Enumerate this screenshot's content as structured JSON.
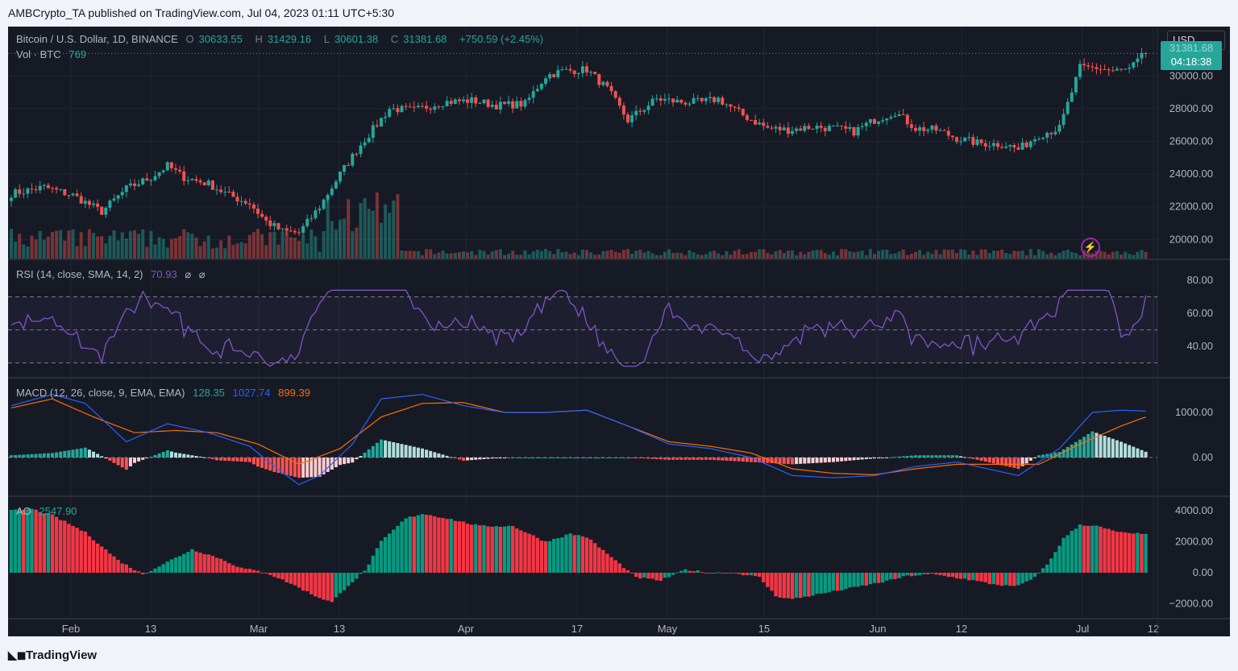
{
  "publisher_line": "AMBCrypto_TA published on TradingView.com, Jul 04, 2023 01:11 UTC+5:30",
  "branding": "TradingView",
  "price_legend": {
    "symbol": "Bitcoin / U.S. Dollar, 1D, BINANCE",
    "open_label": "O",
    "open": "30633.55",
    "high_label": "H",
    "high": "31429.16",
    "low_label": "L",
    "low": "30601.38",
    "close_label": "C",
    "close": "31381.68",
    "change": "+750.59 (+2.45%)"
  },
  "volume_legend": {
    "label": "Vol · BTC",
    "value": "769"
  },
  "rsi_legend": {
    "label": "RSI (14, close, SMA, 14, 2)",
    "value": "70.93",
    "extra1": "⌀",
    "extra2": "⌀"
  },
  "macd_legend": {
    "label": "MACD (12, 26, close, 9, EMA, EMA)",
    "hist": "128.35",
    "macd": "1027.74",
    "signal": "899.39"
  },
  "ao_legend": {
    "label": "AO",
    "value": "2547.90"
  },
  "currency_button": "USD",
  "last_price_tag": {
    "price": "31381.68",
    "countdown": "04:18:38"
  },
  "colors": {
    "background": "#161a25",
    "grid": "#232632",
    "up": "#26a69a",
    "down": "#ef5350",
    "rsi": "#7e57c2",
    "macd": "#2962ff",
    "signal": "#ff6d00",
    "text": "#b2b5be"
  },
  "chart_data": {
    "type": "candlestick",
    "x_ticks": [
      "Feb",
      "13",
      "Mar",
      "13",
      "Apr",
      "17",
      "May",
      "15",
      "Jun",
      "12",
      "Jul",
      "12"
    ],
    "panels": [
      {
        "name": "price",
        "y_ticks": [
          "30000.00",
          "28000.00",
          "26000.00",
          "24000.00",
          "22000.00",
          "20000.00"
        ],
        "close_anchors": [
          [
            0,
            22800
          ],
          [
            8,
            23200
          ],
          [
            15,
            22700
          ],
          [
            22,
            21700
          ],
          [
            28,
            23100
          ],
          [
            34,
            23800
          ],
          [
            38,
            24500
          ],
          [
            42,
            23800
          ],
          [
            48,
            23400
          ],
          [
            53,
            22700
          ],
          [
            58,
            22200
          ],
          [
            62,
            21100
          ],
          [
            66,
            20500
          ],
          [
            70,
            20400
          ],
          [
            75,
            22000
          ],
          [
            80,
            24000
          ],
          [
            85,
            25800
          ],
          [
            92,
            28000
          ],
          [
            98,
            27900
          ],
          [
            105,
            28400
          ],
          [
            112,
            28500
          ],
          [
            118,
            28200
          ],
          [
            125,
            28300
          ],
          [
            130,
            30000
          ],
          [
            134,
            30300
          ],
          [
            140,
            30400
          ],
          [
            145,
            29200
          ],
          [
            150,
            27300
          ],
          [
            157,
            28600
          ],
          [
            163,
            28400
          ],
          [
            168,
            28400
          ],
          [
            172,
            28600
          ],
          [
            178,
            27600
          ],
          [
            184,
            26800
          ],
          [
            189,
            26700
          ],
          [
            195,
            26900
          ],
          [
            200,
            26800
          ],
          [
            205,
            26600
          ],
          [
            210,
            27300
          ],
          [
            215,
            27800
          ],
          [
            220,
            26800
          ],
          [
            225,
            26700
          ],
          [
            230,
            26200
          ],
          [
            235,
            25900
          ],
          [
            242,
            25800
          ],
          [
            245,
            25500
          ],
          [
            250,
            26400
          ],
          [
            255,
            26800
          ],
          [
            260,
            30500
          ],
          [
            264,
            30500
          ],
          [
            268,
            30300
          ],
          [
            272,
            30400
          ],
          [
            276,
            31400
          ]
        ]
      },
      {
        "name": "rsi",
        "y_ticks": [
          "80.00",
          "60.00",
          "40.00"
        ],
        "bands": [
          30,
          50,
          70
        ],
        "last": 70.93
      },
      {
        "name": "macd",
        "y_ticks": [
          "1000.00",
          "0.00"
        ],
        "macd_anchors": [
          [
            0,
            1150
          ],
          [
            10,
            1400
          ],
          [
            18,
            1200
          ],
          [
            28,
            350
          ],
          [
            38,
            750
          ],
          [
            48,
            550
          ],
          [
            58,
            250
          ],
          [
            64,
            -200
          ],
          [
            70,
            -600
          ],
          [
            75,
            -400
          ],
          [
            83,
            300
          ],
          [
            90,
            1300
          ],
          [
            100,
            1400
          ],
          [
            110,
            1150
          ],
          [
            120,
            1000
          ],
          [
            130,
            1000
          ],
          [
            140,
            1050
          ],
          [
            150,
            700
          ],
          [
            160,
            300
          ],
          [
            170,
            200
          ],
          [
            180,
            0
          ],
          [
            190,
            -400
          ],
          [
            200,
            -450
          ],
          [
            210,
            -400
          ],
          [
            220,
            -200
          ],
          [
            230,
            -100
          ],
          [
            240,
            -300
          ],
          [
            245,
            -400
          ],
          [
            255,
            200
          ],
          [
            263,
            1000
          ],
          [
            270,
            1050
          ],
          [
            276,
            1027.74
          ]
        ],
        "signal_anchors": [
          [
            0,
            1100
          ],
          [
            10,
            1300
          ],
          [
            20,
            900
          ],
          [
            30,
            550
          ],
          [
            40,
            600
          ],
          [
            50,
            550
          ],
          [
            60,
            300
          ],
          [
            70,
            -150
          ],
          [
            80,
            200
          ],
          [
            90,
            900
          ],
          [
            100,
            1200
          ],
          [
            110,
            1220
          ],
          [
            120,
            1000
          ],
          [
            130,
            1000
          ],
          [
            140,
            1050
          ],
          [
            150,
            700
          ],
          [
            160,
            350
          ],
          [
            170,
            250
          ],
          [
            180,
            100
          ],
          [
            190,
            -250
          ],
          [
            200,
            -350
          ],
          [
            210,
            -380
          ],
          [
            220,
            -250
          ],
          [
            230,
            -150
          ],
          [
            240,
            -150
          ],
          [
            250,
            -150
          ],
          [
            260,
            300
          ],
          [
            270,
            700
          ],
          [
            276,
            899.39
          ]
        ],
        "histogram_last": 128.35
      },
      {
        "name": "ao",
        "y_ticks": [
          "4000.00",
          "2000.00",
          "0.00",
          "−2000.00"
        ],
        "anchors": [
          [
            0,
            4000
          ],
          [
            5,
            4100
          ],
          [
            10,
            3700
          ],
          [
            18,
            2600
          ],
          [
            26,
            800
          ],
          [
            32,
            -100
          ],
          [
            38,
            700
          ],
          [
            44,
            1500
          ],
          [
            50,
            1000
          ],
          [
            56,
            300
          ],
          [
            62,
            0
          ],
          [
            68,
            -700
          ],
          [
            74,
            -1500
          ],
          [
            78,
            -1900
          ],
          [
            82,
            -800
          ],
          [
            86,
            100
          ],
          [
            90,
            2000
          ],
          [
            96,
            3500
          ],
          [
            100,
            3800
          ],
          [
            106,
            3500
          ],
          [
            114,
            3000
          ],
          [
            122,
            3000
          ],
          [
            130,
            2000
          ],
          [
            136,
            2500
          ],
          [
            140,
            2300
          ],
          [
            146,
            1000
          ],
          [
            152,
            -300
          ],
          [
            158,
            -500
          ],
          [
            164,
            200
          ],
          [
            170,
            0
          ],
          [
            176,
            0
          ],
          [
            182,
            -300
          ],
          [
            186,
            -1500
          ],
          [
            190,
            -1700
          ],
          [
            196,
            -1400
          ],
          [
            204,
            -1000
          ],
          [
            212,
            -600
          ],
          [
            218,
            -200
          ],
          [
            224,
            -100
          ],
          [
            232,
            -400
          ],
          [
            238,
            -700
          ],
          [
            244,
            -900
          ],
          [
            248,
            -500
          ],
          [
            252,
            500
          ],
          [
            256,
            2200
          ],
          [
            260,
            3100
          ],
          [
            264,
            3000
          ],
          [
            268,
            2700
          ],
          [
            272,
            2500
          ],
          [
            276,
            2547.9
          ]
        ]
      }
    ]
  }
}
